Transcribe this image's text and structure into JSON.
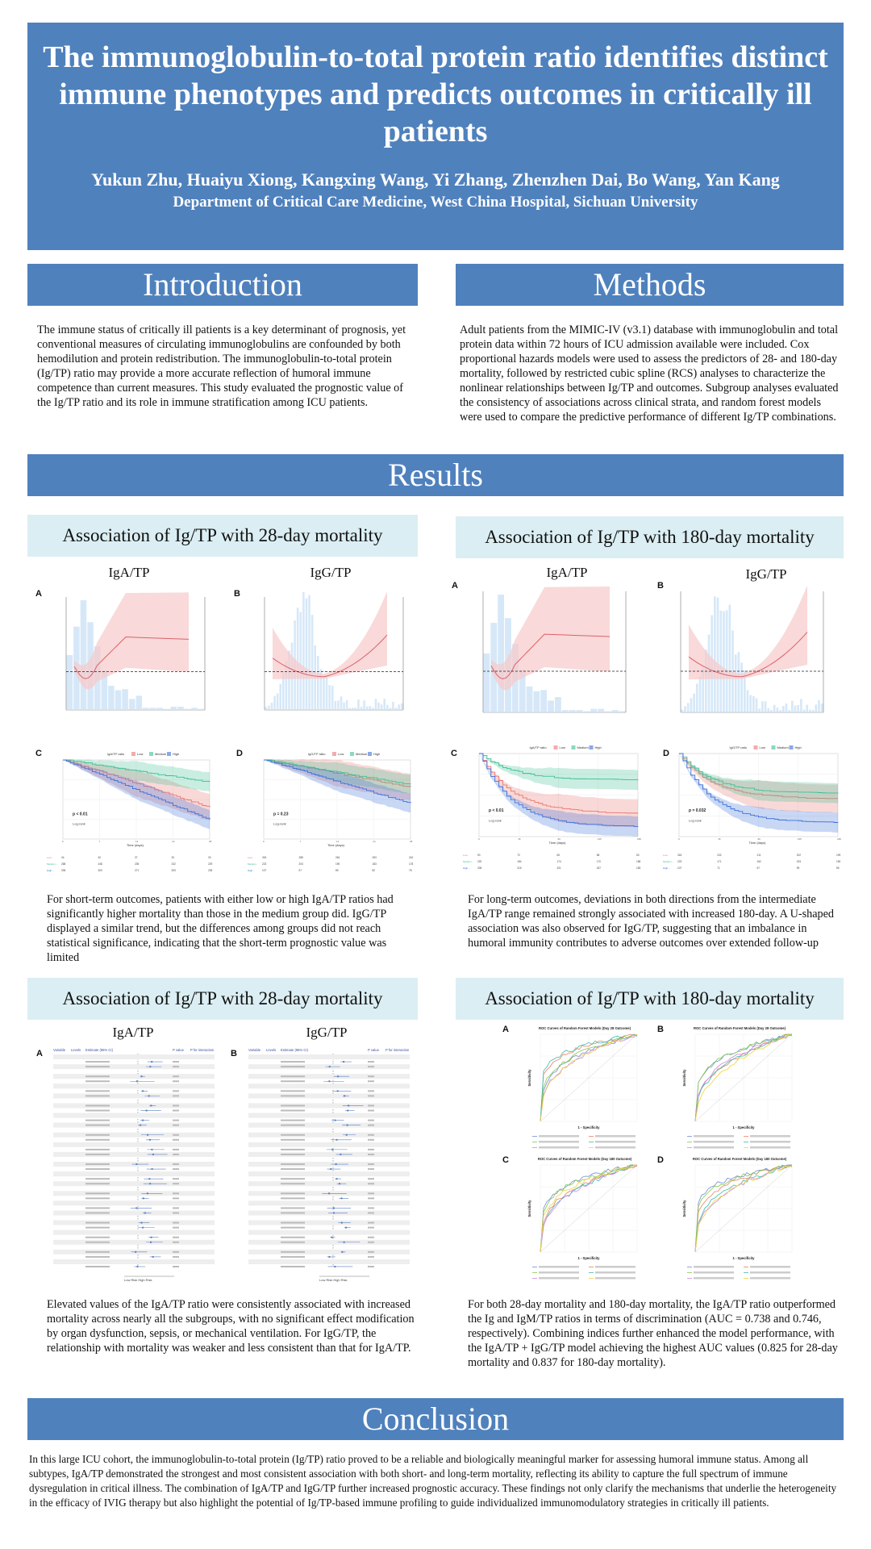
{
  "header": {
    "title": "The immunoglobulin-to-total protein ratio identifies distinct immune phenotypes and predicts outcomes in critically ill patients",
    "authors": "Yukun Zhu, Huaiyu Xiong, Kangxing Wang, Yi Zhang, Zhenzhen Dai, Bo Wang, Yan Kang",
    "affiliation": "Department of Critical Care Medicine, West China Hospital, Sichuan University"
  },
  "introduction": {
    "heading": "Introduction",
    "text": "The immune status of critically ill patients is a key determinant of prognosis, yet conventional measures of circulating immunoglobulins are confounded by both hemodilution and protein redistribution. The immunoglobulin-to-total protein (Ig/TP) ratio may provide a more accurate reflection of humoral immune competence than current measures. This study evaluated the prognostic value of the Ig/TP ratio and its role in immune stratification among ICU patients."
  },
  "methods": {
    "heading": "Methods",
    "text": "Adult patients from the MIMIC-IV (v3.1) database with immunoglobulin and total protein data within 72 hours of ICU admission available were included. Cox proportional hazards models were used to assess the predictors of 28- and 180-day mortality, followed by restricted cubic spline (RCS) analyses to characterize the nonlinear relationships between Ig/TP and outcomes. Subgroup analyses evaluated the consistency of associations across clinical strata, and random forest models were used to compare the predictive performance of different Ig/TP combinations."
  },
  "results": {
    "heading": "Results",
    "panel_28d": {
      "heading": "Association of Ig/TP with 28-day mortality",
      "col_titles": [
        "IgA/TP",
        "IgG/TP"
      ],
      "labels": [
        "A",
        "B",
        "C",
        "D"
      ],
      "rcs_annotations": {
        "A": "p value<0.05 / Nonlinear p value<0.27",
        "B": "p value<0.05 / Nonlinear p value<0.01"
      },
      "km": {
        "C": {
          "legend": "IgA/TP ratio",
          "groups": [
            "Low",
            "Medium",
            "High"
          ],
          "p": "p < 0.01",
          "test": "Log-rank",
          "xlabel": "Time (days)",
          "ylabel": "Cumulative Survival (%)",
          "risk_table": [
            [
              "44",
              "40",
              "37",
              "33",
              "33"
            ],
            [
              "268",
              "248",
              "235",
              "232",
              "229"
            ],
            [
              "335",
              "300",
              "271",
              "253",
              "235"
            ]
          ],
          "times": [
            "0",
            "7",
            "14",
            "21",
            "28"
          ]
        },
        "D": {
          "legend": "IgG/TP ratio",
          "groups": [
            "Low",
            "Medium",
            "High"
          ],
          "p": "p = 0.23",
          "test": "Log-rank",
          "xlabel": "Time (days)",
          "ylabel": "Cumulative Survival (%)",
          "risk_table": [
            [
              "318",
              "288",
              "264",
              "253",
              "242"
            ],
            [
              "223",
              "203",
              "190",
              "183",
              "178"
            ],
            [
              "107",
              "97",
              "89",
              "82",
              "78"
            ]
          ],
          "times": [
            "0",
            "7",
            "14",
            "21",
            "28"
          ]
        }
      },
      "caption": "For short-term outcomes, patients with either low or high IgA/TP ratios had significantly higher mortality than those in the medium group did. IgG/TP displayed a similar trend, but the differences among groups did not reach statistical significance, indicating that the short-term prognostic value was limited"
    },
    "panel_180d": {
      "heading": "Association of Ig/TP with 180-day mortality",
      "col_titles": [
        "IgA/TP",
        "IgG/TP"
      ],
      "labels": [
        "A",
        "B",
        "C",
        "D"
      ],
      "km": {
        "C": {
          "legend": "IgA/TP ratio",
          "groups": [
            "Low",
            "Medium",
            "High"
          ],
          "p": "p < 0.01",
          "test": "Log-rank",
          "xlabel": "Time (days)",
          "risk_table": [
            [
              "90",
              "72",
              "65",
              "58",
              "53"
            ],
            [
              "220",
              "184",
              "174",
              "170",
              "168"
            ],
            [
              "335",
              "216",
              "201",
              "187",
              "183"
            ]
          ],
          "times": [
            "0",
            "45",
            "90",
            "135",
            "180"
          ]
        },
        "D": {
          "legend": "IgG/TP ratio",
          "groups": [
            "Low",
            "Medium",
            "High"
          ],
          "p": "p = 0.032",
          "test": "Log-rank",
          "xlabel": "Time (days)",
          "risk_table": [
            [
              "318",
              "232",
              "211",
              "202",
              "199"
            ],
            [
              "223",
              "171",
              "162",
              "153",
              "150"
            ],
            [
              "107",
              "71",
              "67",
              "59",
              "55"
            ]
          ],
          "times": [
            "0",
            "45",
            "90",
            "135",
            "180"
          ]
        }
      },
      "caption": "For long-term outcomes, deviations in both directions from the intermediate IgA/TP range remained strongly associated with increased 180-day. A U-shaped association was also observed for IgG/TP, suggesting that an imbalance in humoral immunity contributes to adverse outcomes over extended follow-up"
    },
    "panel_subgroup": {
      "heading": "Association of Ig/TP with 28-day mortality",
      "col_titles": [
        "IgA/TP",
        "IgG/TP"
      ],
      "labels": [
        "A",
        "B"
      ],
      "forest_header": [
        "Variable",
        "Levels",
        "Estimate (95% CI)",
        "P value",
        "P for interaction"
      ],
      "axis_note": "Low Risk   High Risk",
      "caption": "Elevated values of the IgA/TP ratio were consistently associated with increased mortality across nearly all the subgroups, with no significant effect modification by organ dysfunction, sepsis, or mechanical ventilation. For IgG/TP, the relationship with mortality was weaker and less consistent than that for IgA/TP."
    },
    "panel_roc": {
      "heading": "Association of Ig/TP with 180-day mortality",
      "labels": [
        "A",
        "B",
        "C",
        "D"
      ],
      "titles": [
        "ROC Curves of Random Forest Models (Day 28 Outcome)",
        "ROC Curves of Random Forest Models (Day 28 Outcome)",
        "ROC Curves of Random Forest Models (Day 180 Outcome)",
        "ROC Curves of Random Forest Models (Day 180 Outcome)"
      ],
      "xlabel": "1 - Specificity",
      "ylabel": "Sensitivity",
      "caption": "For both 28-day mortality and 180-day mortality, the IgA/TP ratio outperformed the Ig and IgM/TP ratios in terms of discrimination (AUC = 0.738 and 0.746, respectively). Combining indices further enhanced the model performance, with the IgA/TP + IgG/TP model achieving the highest AUC values (0.825 for 28-day mortality and 0.837 for 180-day mortality)."
    }
  },
  "conclusion": {
    "heading": "Conclusion",
    "text": "In this large ICU cohort, the immunoglobulin-to-total protein (Ig/TP) ratio proved to be a reliable and biologically meaningful marker for assessing humoral immune status. Among all subtypes, IgA/TP demonstrated the strongest and most consistent association with both short- and long-term mortality, reflecting its ability to capture the full spectrum of immune dysregulation in critical illness. The combination of IgA/TP and IgG/TP further increased prognostic accuracy. These findings not only clarify the mechanisms that underlie the heterogeneity in the efficacy of IVIG therapy but also highlight the potential of Ig/TP-based immune profiling to guide individualized immunomodulatory strategies in critically ill patients."
  },
  "colors": {
    "banner": "#4f81bd",
    "subheading_bg": "#dbeef3",
    "low": "#e8766e",
    "medium": "#3dbf95",
    "high": "#3b6fd8",
    "histogram": "#cfe4f7",
    "ci_band": "#f7c9c9"
  }
}
